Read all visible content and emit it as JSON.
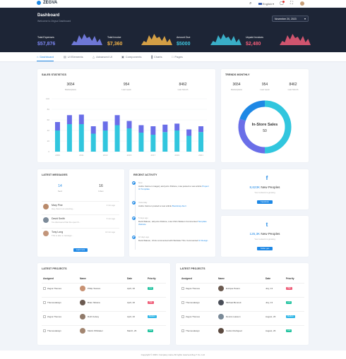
{
  "app": {
    "name": "ZEGVA"
  },
  "topbar": {
    "language": "English"
  },
  "header": {
    "title": "Dashboard",
    "subtitle": "Welcome to Zegva Dashboard",
    "date": "November 20, 2023"
  },
  "stats": [
    {
      "label": "Total Expenses",
      "value": "$57,876",
      "color": "#7c86f2"
    },
    {
      "label": "Total Invoice",
      "value": "$7,360",
      "color": "#f5b548"
    },
    {
      "label": "Amount Due",
      "value": "$5000",
      "color": "#3ec7e0"
    },
    {
      "label": "Unpaid Invoices",
      "value": "$2,480",
      "color": "#ef5d78"
    }
  ],
  "nav": [
    "Dashboard",
    "UI Elements",
    "Advanced UI",
    "Components",
    "Charts",
    "Pages"
  ],
  "sales": {
    "title": "SALES STATISTICS",
    "stats": [
      {
        "num": "3654",
        "label": "Marketplace"
      },
      {
        "num": "954",
        "label": "Last week"
      },
      {
        "num": "8462",
        "label": "Last Month"
      }
    ]
  },
  "trends": {
    "title": "TRENDS MONTHLY",
    "stats": [
      {
        "num": "3654",
        "label": "Marketplace"
      },
      {
        "num": "954",
        "label": "Last week"
      },
      {
        "num": "8462",
        "label": "Last Month"
      }
    ],
    "donut_label": "In-Store Sales",
    "donut_value": "50"
  },
  "chart_data": [
    {
      "type": "bar",
      "stacked": true,
      "categories": [
        "2009",
        "2010",
        "2011",
        "2012",
        "2013",
        "2014",
        "2015",
        "2016",
        "2017",
        "2018",
        "2019",
        "2020",
        "2021"
      ],
      "tick_labels": [
        "2009",
        "2011",
        "2013",
        "2015",
        "2017",
        "2019",
        "2021"
      ],
      "series": [
        {
          "color": "#31c6de",
          "values": [
            40,
            52,
            52,
            34,
            40,
            50,
            44,
            36,
            32,
            37,
            40,
            30,
            37
          ]
        },
        {
          "color": "#6a6ee8",
          "values": [
            16,
            17,
            18,
            14,
            17,
            19,
            14,
            14,
            16,
            14,
            13,
            12,
            11
          ]
        }
      ],
      "yticks": [
        0,
        20,
        40,
        60,
        80,
        100
      ],
      "ylim": [
        0,
        100
      ],
      "grid": true
    },
    {
      "type": "pie",
      "donut": true,
      "slices": [
        {
          "value": 50,
          "color": "#31c6de"
        },
        {
          "value": 30,
          "color": "#6a6ee8"
        },
        {
          "value": 20,
          "color": "#1e88e5"
        }
      ]
    }
  ],
  "messages": {
    "title": "LATEST MESSAGES",
    "stats": [
      {
        "num": "14",
        "label": "Sent"
      },
      {
        "num": "16",
        "label": "Inbox"
      }
    ],
    "items": [
      {
        "name": "Mary Pine",
        "text": "Hey, there's an amazing...",
        "time": "2 min ago",
        "color": "#b98a6b"
      },
      {
        "name": "David Smith",
        "text": "I've discovered that the open th...",
        "time": "5 min ago",
        "color": "#7c8a99"
      },
      {
        "name": "Tony Long",
        "text": "This is also a message...",
        "time": "10 min ago",
        "color": "#c2957a"
      }
    ],
    "button": "Load more"
  },
  "activity": {
    "title": "RECENT ACTIVITY",
    "items": [
      {
        "when": "Now",
        "text": "Andre Carmen imagery and joins Pellone, Lisa posted a new article",
        "link": "Project UI Template"
      },
      {
        "when": "Yesterday",
        "text": "Andre Carmen posted a new article",
        "link": "Bootstrap Alert"
      },
      {
        "when": "5 days ago",
        "text": "Dark Watson, tell joins Pellone, Lisa Chris Watson Commented",
        "link": "Template Website"
      },
      {
        "when": "16 days ago",
        "text": "Dark Watson, Chris commented with Website Thru Commented",
        "link": "UI Design"
      }
    ]
  },
  "social": [
    {
      "icon": "f",
      "count": "8,623K",
      "suffix": " New Peoples",
      "sub": "Your network is growing",
      "button": "Facebook",
      "color": "#1e88e5"
    },
    {
      "icon": "t",
      "count": "125,3K",
      "suffix": " New Peoples",
      "sub": "Your network is growing",
      "button": "Twitter ges",
      "color": "#1e88e5"
    }
  ],
  "projects": [
    {
      "title": "LATEST PROJECTS",
      "headers": [
        "Assigned",
        "Name",
        "Date",
        "Priority"
      ],
      "rows": [
        {
          "assigned": "Zegva Themes",
          "name": "Philip Towson",
          "date": "April, 26",
          "priority": "Low",
          "pcolor": "#22c3a0",
          "acolor": "#c89273"
        },
        {
          "assigned": "Themesdesign",
          "name": "Brian Silvana",
          "date": "April, 26",
          "priority": "High",
          "pcolor": "#ef5d78",
          "acolor": "#6b5a50"
        },
        {
          "assigned": "Zegva Themes",
          "name": "Ruth Kelsey",
          "date": "April, 26",
          "priority": "Medium",
          "pcolor": "#2eb5e6",
          "acolor": "#907a6a"
        },
        {
          "assigned": "Themesdesign",
          "name": "Martin Whittaker",
          "date": "March, 26",
          "priority": "Low",
          "pcolor": "#22c3a0",
          "acolor": "#a28570"
        }
      ]
    },
    {
      "title": "LATEST PROJECTS",
      "headers": [
        "Assigned",
        "Name",
        "Date",
        "Priority"
      ],
      "rows": [
        {
          "assigned": "Zegva Themes",
          "name": "Enrique Peters",
          "date": "July, 13",
          "priority": "High",
          "pcolor": "#ef5d78",
          "acolor": "#6b5a50"
        },
        {
          "assigned": "Themesdesign",
          "name": "Michael Bennett",
          "date": "July, 13",
          "priority": "Low",
          "pcolor": "#22c3a0",
          "acolor": "#4a4e58"
        },
        {
          "assigned": "Zegva Themes",
          "name": "Dennis Lawson",
          "date": "August, 26",
          "priority": "Medium",
          "pcolor": "#2eb5e6",
          "acolor": "#7a8a98"
        },
        {
          "assigned": "Themesdesign",
          "name": "Carlos Rodriguez",
          "date": "August, 26",
          "priority": "Low",
          "pcolor": "#22c3a0",
          "acolor": "#5b4a40"
        }
      ]
    }
  ],
  "footer": "Copyright © 2023. Company name All rights reserved Zeg 7 Co. Ltd."
}
